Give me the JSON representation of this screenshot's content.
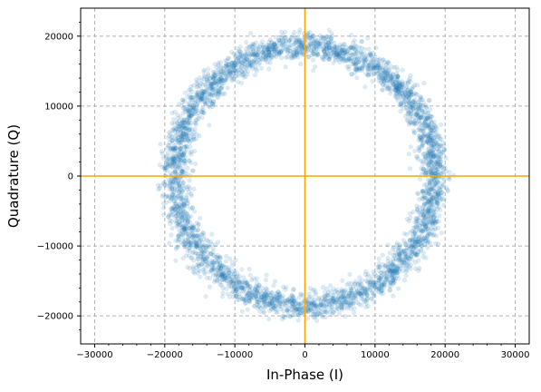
{
  "chart_data": {
    "type": "scatter",
    "title": "",
    "xlabel": "In-Phase (I)",
    "ylabel": "Quadrature (Q)",
    "xlim": [
      -32000,
      32000
    ],
    "ylim": [
      -24000,
      24000
    ],
    "x_ticks": [
      -30000,
      -20000,
      -10000,
      0,
      10000,
      20000,
      30000
    ],
    "y_ticks": [
      -20000,
      -10000,
      0,
      10000,
      20000
    ],
    "x_tick_labels": [
      "−30000",
      "−20000",
      "−10000",
      "0",
      "10000",
      "20000",
      "30000"
    ],
    "y_tick_labels": [
      "−20000",
      "−10000",
      "0",
      "10000",
      "20000"
    ],
    "grid": true,
    "reference_lines": [
      {
        "orientation": "horizontal",
        "value": 0,
        "color": "#ffa500"
      },
      {
        "orientation": "vertical",
        "value": 0,
        "color": "#ffa500"
      }
    ],
    "series": [
      {
        "color": "#1f77b4",
        "opacity": 0.15,
        "shape": "ring",
        "approx_radius": 18500,
        "approx_spread": 1000,
        "approx_point_count": 4000
      }
    ]
  }
}
